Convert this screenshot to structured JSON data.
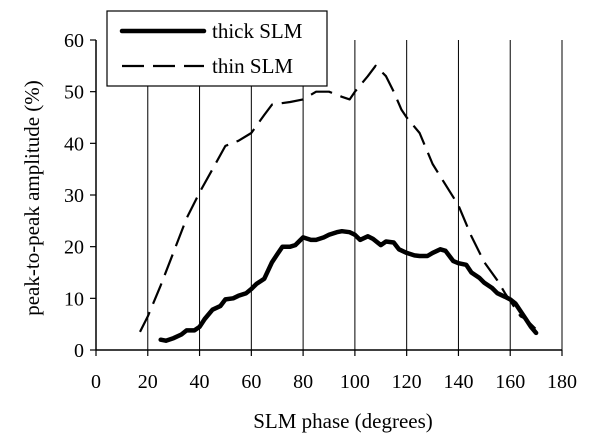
{
  "chart_data": {
    "type": "line",
    "xlabel": "SLM phase (degrees)",
    "ylabel": "peak-to-peak amplitude (%)",
    "xlim": [
      0,
      180
    ],
    "ylim": [
      0,
      60
    ],
    "xticks": [
      0,
      20,
      40,
      60,
      80,
      100,
      120,
      140,
      160,
      180
    ],
    "yticks": [
      0,
      10,
      20,
      30,
      40,
      50,
      60
    ],
    "grid": "vertical",
    "legend_position": "top-left",
    "series": [
      {
        "name": "thick SLM",
        "style": "solid-thick",
        "color": "#000000",
        "points": [
          [
            25,
            2
          ],
          [
            27,
            1.8
          ],
          [
            30,
            2.3
          ],
          [
            33,
            3
          ],
          [
            35,
            3.8
          ],
          [
            38,
            3.8
          ],
          [
            40,
            4.5
          ],
          [
            42,
            6
          ],
          [
            45,
            7.8
          ],
          [
            48,
            8.5
          ],
          [
            50,
            9.8
          ],
          [
            53,
            10
          ],
          [
            55,
            10.5
          ],
          [
            58,
            11
          ],
          [
            60,
            11.8
          ],
          [
            62,
            12.8
          ],
          [
            65,
            13.8
          ],
          [
            68,
            17
          ],
          [
            70,
            18.5
          ],
          [
            72,
            20
          ],
          [
            75,
            20
          ],
          [
            77,
            20.3
          ],
          [
            80,
            21.8
          ],
          [
            83,
            21.3
          ],
          [
            85,
            21.3
          ],
          [
            88,
            21.8
          ],
          [
            90,
            22.3
          ],
          [
            93,
            22.8
          ],
          [
            95,
            23
          ],
          [
            98,
            22.8
          ],
          [
            100,
            22.3
          ],
          [
            102,
            21.3
          ],
          [
            105,
            22
          ],
          [
            107,
            21.5
          ],
          [
            110,
            20.3
          ],
          [
            112,
            21
          ],
          [
            115,
            20.8
          ],
          [
            117,
            19.5
          ],
          [
            120,
            18.8
          ],
          [
            123,
            18.3
          ],
          [
            125,
            18.2
          ],
          [
            128,
            18.2
          ],
          [
            130,
            18.8
          ],
          [
            133,
            19.5
          ],
          [
            135,
            19.2
          ],
          [
            138,
            17.2
          ],
          [
            140,
            16.8
          ],
          [
            143,
            16.5
          ],
          [
            145,
            15
          ],
          [
            148,
            14
          ],
          [
            150,
            13
          ],
          [
            153,
            12
          ],
          [
            155,
            11
          ],
          [
            158,
            10.3
          ],
          [
            160,
            9.8
          ],
          [
            162,
            9
          ],
          [
            164,
            7.5
          ],
          [
            166,
            6
          ],
          [
            168,
            4.5
          ],
          [
            170,
            3.3
          ]
        ]
      },
      {
        "name": "thin SLM",
        "style": "dashed",
        "color": "#000000",
        "points": [
          [
            17,
            3.5
          ],
          [
            20,
            6.5
          ],
          [
            25,
            12.5
          ],
          [
            30,
            19
          ],
          [
            35,
            25.5
          ],
          [
            40,
            30.5
          ],
          [
            45,
            35
          ],
          [
            50,
            39.5
          ],
          [
            55,
            40.5
          ],
          [
            60,
            42
          ],
          [
            65,
            45.5
          ],
          [
            68,
            47.5
          ],
          [
            75,
            48
          ],
          [
            80,
            48.5
          ],
          [
            85,
            50
          ],
          [
            90,
            50
          ],
          [
            95,
            49
          ],
          [
            98,
            48.5
          ],
          [
            100,
            50
          ],
          [
            105,
            53
          ],
          [
            108,
            55
          ],
          [
            112,
            53
          ],
          [
            115,
            50
          ],
          [
            118,
            46.5
          ],
          [
            120,
            45
          ],
          [
            125,
            42
          ],
          [
            130,
            36
          ],
          [
            135,
            32
          ],
          [
            140,
            28
          ],
          [
            145,
            22
          ],
          [
            150,
            17
          ],
          [
            155,
            13.5
          ],
          [
            158,
            11
          ],
          [
            160,
            9.5
          ],
          [
            162,
            8
          ],
          [
            164,
            6.5
          ],
          [
            166,
            6
          ],
          [
            168,
            5
          ],
          [
            170,
            4
          ]
        ]
      }
    ]
  }
}
